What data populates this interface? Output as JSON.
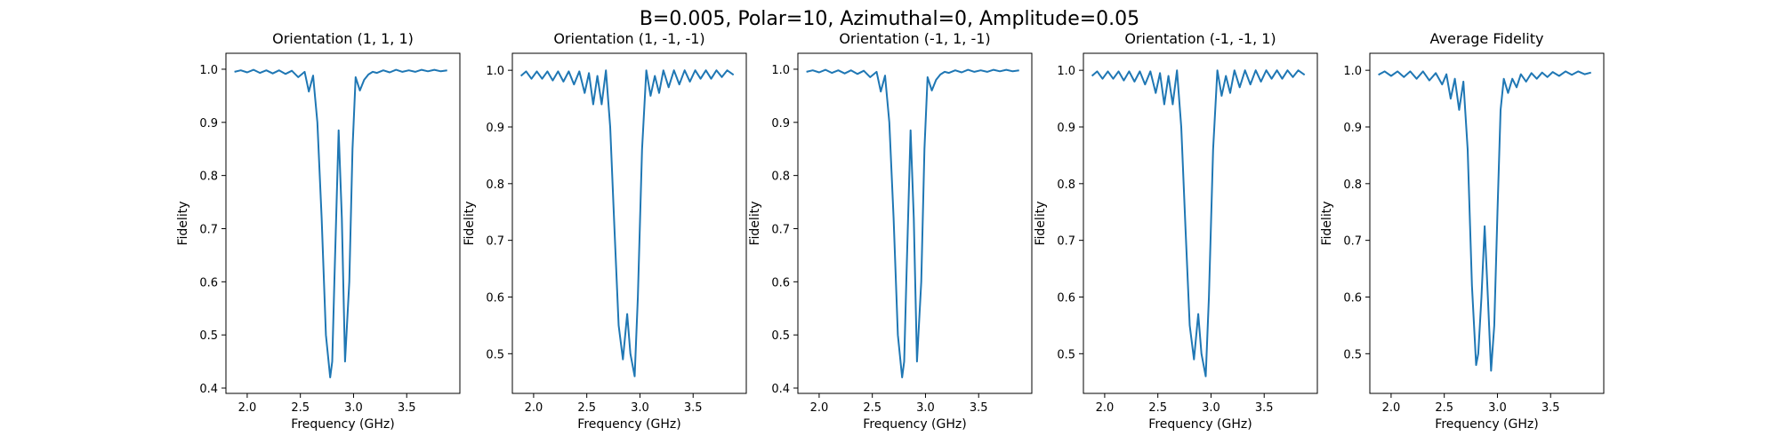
{
  "figure": {
    "suptitle": "B=0.005, Polar=10, Azimuthal=0, Amplitude=0.05"
  },
  "chart_data": [
    {
      "type": "line",
      "title": "Orientation (1, 1, 1)",
      "xlabel": "Frequency (GHz)",
      "ylabel": "Fidelity",
      "xlim": [
        1.8,
        4.0
      ],
      "ylim": [
        0.39,
        1.03
      ],
      "xticks": [
        "2.0",
        "2.5",
        "3.0",
        "3.5"
      ],
      "yticks": [
        "0.4",
        "0.5",
        "0.6",
        "0.7",
        "0.8",
        "0.9",
        "1.0"
      ],
      "color": "#1f77b4",
      "x": [
        1.88,
        1.94,
        2.0,
        2.06,
        2.12,
        2.18,
        2.24,
        2.3,
        2.36,
        2.42,
        2.48,
        2.54,
        2.58,
        2.62,
        2.66,
        2.7,
        2.74,
        2.78,
        2.8,
        2.82,
        2.86,
        2.89,
        2.92,
        2.96,
        2.99,
        3.02,
        3.06,
        3.1,
        3.14,
        3.18,
        3.22,
        3.28,
        3.34,
        3.4,
        3.46,
        3.52,
        3.58,
        3.64,
        3.7,
        3.76,
        3.82,
        3.88
      ],
      "y": [
        0.995,
        0.998,
        0.994,
        0.999,
        0.993,
        0.998,
        0.992,
        0.998,
        0.991,
        0.997,
        0.985,
        0.995,
        0.958,
        0.988,
        0.9,
        0.72,
        0.5,
        0.42,
        0.45,
        0.6,
        0.885,
        0.72,
        0.45,
        0.6,
        0.85,
        0.985,
        0.96,
        0.98,
        0.99,
        0.995,
        0.993,
        0.998,
        0.994,
        0.999,
        0.995,
        0.998,
        0.995,
        0.999,
        0.996,
        0.999,
        0.996,
        0.998
      ]
    },
    {
      "type": "line",
      "title": "Orientation (1, -1, -1)",
      "xlabel": "Frequency (GHz)",
      "ylabel": "Fidelity",
      "xlim": [
        1.8,
        4.0
      ],
      "ylim": [
        0.43,
        1.03
      ],
      "xticks": [
        "2.0",
        "2.5",
        "3.0",
        "3.5"
      ],
      "yticks": [
        "0.5",
        "0.6",
        "0.7",
        "0.8",
        "0.9",
        "1.0"
      ],
      "color": "#1f77b4",
      "x": [
        1.88,
        1.93,
        1.98,
        2.03,
        2.08,
        2.13,
        2.18,
        2.23,
        2.28,
        2.33,
        2.38,
        2.43,
        2.48,
        2.52,
        2.56,
        2.6,
        2.64,
        2.68,
        2.72,
        2.76,
        2.8,
        2.84,
        2.88,
        2.91,
        2.95,
        2.98,
        3.02,
        3.06,
        3.1,
        3.14,
        3.18,
        3.22,
        3.27,
        3.32,
        3.37,
        3.42,
        3.47,
        3.52,
        3.57,
        3.62,
        3.67,
        3.72,
        3.77,
        3.82,
        3.88
      ],
      "y": [
        0.99,
        0.998,
        0.985,
        0.998,
        0.985,
        0.998,
        0.982,
        0.998,
        0.98,
        0.998,
        0.975,
        0.998,
        0.96,
        0.995,
        0.94,
        0.99,
        0.94,
        1.0,
        0.9,
        0.72,
        0.55,
        0.49,
        0.57,
        0.5,
        0.46,
        0.6,
        0.86,
        1.0,
        0.955,
        0.99,
        0.96,
        1.0,
        0.97,
        1.0,
        0.975,
        1.0,
        0.98,
        1.0,
        0.985,
        1.0,
        0.985,
        1.0,
        0.988,
        1.0,
        0.992
      ]
    },
    {
      "type": "line",
      "title": "Orientation (-1, 1, -1)",
      "xlabel": "Frequency (GHz)",
      "ylabel": "Fidelity",
      "xlim": [
        1.8,
        4.0
      ],
      "ylim": [
        0.39,
        1.03
      ],
      "xticks": [
        "2.0",
        "2.5",
        "3.0",
        "3.5"
      ],
      "yticks": [
        "0.4",
        "0.5",
        "0.6",
        "0.7",
        "0.8",
        "0.9",
        "1.0"
      ],
      "color": "#1f77b4",
      "x": [
        1.88,
        1.94,
        2.0,
        2.06,
        2.12,
        2.18,
        2.24,
        2.3,
        2.36,
        2.42,
        2.48,
        2.54,
        2.58,
        2.62,
        2.66,
        2.7,
        2.74,
        2.78,
        2.8,
        2.82,
        2.86,
        2.89,
        2.92,
        2.96,
        2.99,
        3.02,
        3.06,
        3.1,
        3.14,
        3.18,
        3.22,
        3.28,
        3.34,
        3.4,
        3.46,
        3.52,
        3.58,
        3.64,
        3.7,
        3.76,
        3.82,
        3.88
      ],
      "y": [
        0.995,
        0.998,
        0.994,
        0.999,
        0.993,
        0.998,
        0.992,
        0.998,
        0.991,
        0.997,
        0.985,
        0.995,
        0.958,
        0.988,
        0.9,
        0.72,
        0.5,
        0.42,
        0.45,
        0.6,
        0.885,
        0.72,
        0.45,
        0.6,
        0.85,
        0.985,
        0.96,
        0.98,
        0.99,
        0.995,
        0.993,
        0.998,
        0.994,
        0.999,
        0.995,
        0.998,
        0.995,
        0.999,
        0.996,
        0.999,
        0.996,
        0.998
      ]
    },
    {
      "type": "line",
      "title": "Orientation (-1, -1, 1)",
      "xlabel": "Frequency (GHz)",
      "ylabel": "Fidelity",
      "xlim": [
        1.8,
        4.0
      ],
      "ylim": [
        0.43,
        1.03
      ],
      "xticks": [
        "2.0",
        "2.5",
        "3.0",
        "3.5"
      ],
      "yticks": [
        "0.5",
        "0.6",
        "0.7",
        "0.8",
        "0.9",
        "1.0"
      ],
      "color": "#1f77b4",
      "x": [
        1.88,
        1.93,
        1.98,
        2.03,
        2.08,
        2.13,
        2.18,
        2.23,
        2.28,
        2.33,
        2.38,
        2.43,
        2.48,
        2.52,
        2.56,
        2.6,
        2.64,
        2.68,
        2.72,
        2.76,
        2.8,
        2.84,
        2.88,
        2.91,
        2.95,
        2.98,
        3.02,
        3.06,
        3.1,
        3.14,
        3.18,
        3.22,
        3.27,
        3.32,
        3.37,
        3.42,
        3.47,
        3.52,
        3.57,
        3.62,
        3.67,
        3.72,
        3.77,
        3.82,
        3.88
      ],
      "y": [
        0.99,
        0.998,
        0.985,
        0.998,
        0.985,
        0.998,
        0.982,
        0.998,
        0.98,
        0.998,
        0.975,
        0.998,
        0.96,
        0.995,
        0.94,
        0.99,
        0.94,
        1.0,
        0.9,
        0.72,
        0.55,
        0.49,
        0.57,
        0.5,
        0.46,
        0.6,
        0.86,
        1.0,
        0.955,
        0.99,
        0.96,
        1.0,
        0.97,
        1.0,
        0.975,
        1.0,
        0.98,
        1.0,
        0.985,
        1.0,
        0.985,
        1.0,
        0.988,
        1.0,
        0.992
      ]
    },
    {
      "type": "line",
      "title": "Average Fidelity",
      "xlabel": "Frequency (GHz)",
      "ylabel": "Fidelity",
      "xlim": [
        1.8,
        4.0
      ],
      "ylim": [
        0.43,
        1.03
      ],
      "xticks": [
        "2.0",
        "2.5",
        "3.0",
        "3.5"
      ],
      "yticks": [
        "0.5",
        "0.6",
        "0.7",
        "0.8",
        "0.9",
        "1.0"
      ],
      "color": "#1f77b4",
      "x": [
        1.88,
        1.94,
        2.0,
        2.06,
        2.12,
        2.18,
        2.24,
        2.3,
        2.36,
        2.42,
        2.48,
        2.52,
        2.56,
        2.6,
        2.64,
        2.68,
        2.72,
        2.76,
        2.8,
        2.82,
        2.85,
        2.88,
        2.91,
        2.94,
        2.97,
        3.0,
        3.03,
        3.06,
        3.1,
        3.14,
        3.18,
        3.22,
        3.27,
        3.32,
        3.37,
        3.42,
        3.47,
        3.52,
        3.58,
        3.64,
        3.7,
        3.76,
        3.82,
        3.88
      ],
      "y": [
        0.992,
        0.998,
        0.99,
        0.998,
        0.988,
        0.998,
        0.985,
        0.998,
        0.982,
        0.995,
        0.975,
        0.993,
        0.95,
        0.985,
        0.93,
        0.98,
        0.86,
        0.62,
        0.48,
        0.5,
        0.6,
        0.725,
        0.6,
        0.47,
        0.55,
        0.75,
        0.93,
        0.985,
        0.96,
        0.985,
        0.97,
        0.993,
        0.98,
        0.995,
        0.985,
        0.996,
        0.988,
        0.997,
        0.99,
        0.998,
        0.992,
        0.998,
        0.993,
        0.996
      ]
    }
  ]
}
